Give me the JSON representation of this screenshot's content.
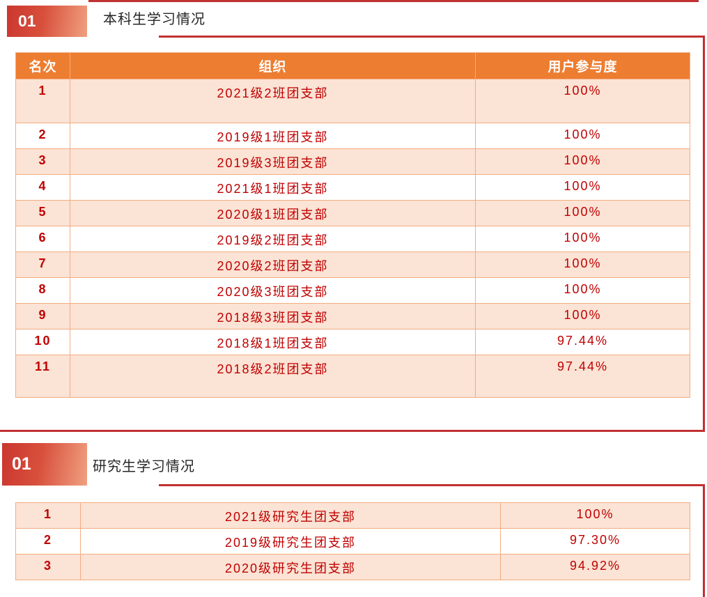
{
  "colors": {
    "header_orange": "#ED7D31",
    "row_peach": "#FBE3D5",
    "table_border": "#F3AC80",
    "text_dark_red": "#C00000",
    "accent_line_red": "#C13032",
    "badge_gradient_start": "#CA362F",
    "badge_gradient_end": "#F0A081",
    "title_text": "#262626"
  },
  "slide1": {
    "number": "01",
    "title": "本科生学习情况",
    "table": {
      "headers": [
        "名次",
        "组织",
        "用户参与度"
      ],
      "rows": [
        [
          "1",
          "2021级2班团支部",
          "100%"
        ],
        [
          "2",
          "2019级1班团支部",
          "100%"
        ],
        [
          "3",
          "2019级3班团支部",
          "100%"
        ],
        [
          "4",
          "2021级1班团支部",
          "100%"
        ],
        [
          "5",
          "2020级1班团支部",
          "100%"
        ],
        [
          "6",
          "2019级2班团支部",
          "100%"
        ],
        [
          "7",
          "2020级2班团支部",
          "100%"
        ],
        [
          "8",
          "2020级3班团支部",
          "100%"
        ],
        [
          "9",
          "2018级3班团支部",
          "100%"
        ],
        [
          "10",
          "2018级1班团支部",
          "97.44%"
        ],
        [
          "11",
          "2018级2班团支部",
          "97.44%"
        ]
      ]
    }
  },
  "slide2": {
    "number": "01",
    "title": "研究生学习情况",
    "table": {
      "rows": [
        [
          "1",
          "2021级研究生团支部",
          "100%"
        ],
        [
          "2",
          "2019级研究生团支部",
          "97.30%"
        ],
        [
          "3",
          "2020级研究生团支部",
          "94.92%"
        ]
      ]
    }
  }
}
